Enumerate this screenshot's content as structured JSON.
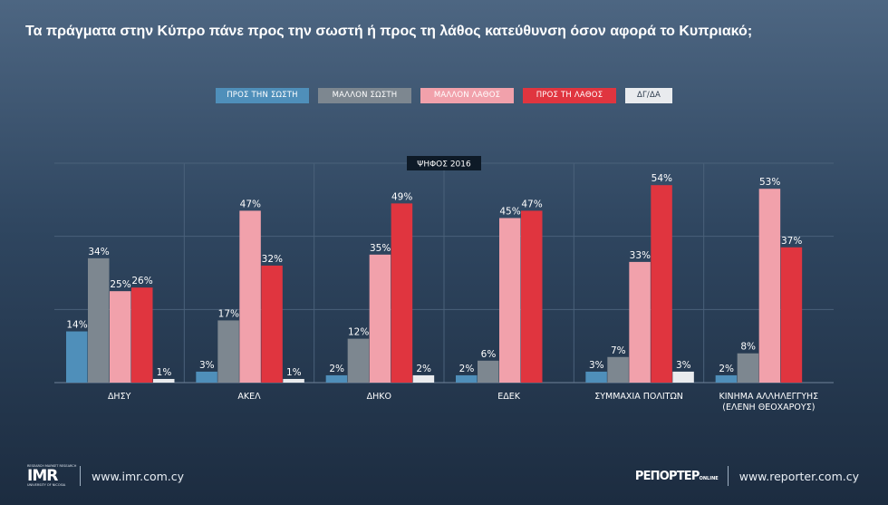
{
  "title": "Τα πράγματα στην Κύπρο πάνε προς την σωστή ή προς τη λάθος κατεύθυνση όσον αφορά το Κυπριακό;",
  "chart_data": {
    "type": "bar",
    "panel_label": "ΨΗΦΟΣ 2016",
    "categories": [
      "ΔΗΣΥ",
      "ΑΚΕΛ",
      "ΔΗΚΟ",
      "ΕΔΕΚ",
      "ΣΥΜΜΑΧΙΑ ΠΟΛΙΤΩΝ",
      "ΚΙΝΗΜΑ ΑΛΛΗΛΕΓΓΥΗΣ (ΕΛΕΝΗ ΘΕΟΧΑΡΟΥΣ)"
    ],
    "category_lines": [
      [
        "ΔΗΣΥ"
      ],
      [
        "ΑΚΕΛ"
      ],
      [
        "ΔΗΚΟ"
      ],
      [
        "ΕΔΕΚ"
      ],
      [
        "ΣΥΜΜΑΧΙΑ ΠΟΛΙΤΩΝ"
      ],
      [
        "ΚΙΝΗΜΑ ΑΛΛΗΛΕΓΓΥΗΣ",
        "(ΕΛΕΝΗ ΘΕΟΧΑΡΟΥΣ)"
      ]
    ],
    "series": [
      {
        "name": "ΠΡΟΣ ΤΗΝ ΣΩΣΤΗ",
        "color": "#4f8fba",
        "values": [
          14,
          3,
          2,
          2,
          3,
          2
        ]
      },
      {
        "name": "ΜΑΛΛΟΝ ΣΩΣΤΗ",
        "color": "#7d8790",
        "values": [
          34,
          17,
          12,
          6,
          7,
          8
        ]
      },
      {
        "name": "ΜΑΛΛΟΝ ΛΑΘΟΣ",
        "color": "#f1a1ab",
        "values": [
          25,
          47,
          35,
          45,
          33,
          53
        ]
      },
      {
        "name": "ΠΡΟΣ ΤΗ ΛΑΘΟΣ",
        "color": "#e0353f",
        "values": [
          26,
          32,
          49,
          47,
          54,
          37
        ]
      },
      {
        "name": "ΔΓ/ΔΑ",
        "color": "#e9ebee",
        "values": [
          1,
          1,
          2,
          null,
          3,
          null
        ]
      }
    ],
    "value_suffix": "%",
    "ylim": [
      0,
      60
    ],
    "grid": true,
    "legend_position": "top"
  },
  "footer": {
    "imr_logo_top": "RESEARCH MARKET RESEARCH",
    "imr_logo_text": "IMR",
    "imr_logo_sub": "UNIVERSITY OF NICOSIA",
    "imr_url": "www.imr.com.cy",
    "reporter_logo_text": "РЕПОРТЕР",
    "reporter_logo_suffix": "ONLINE",
    "reporter_url": "www.reporter.com.cy"
  }
}
